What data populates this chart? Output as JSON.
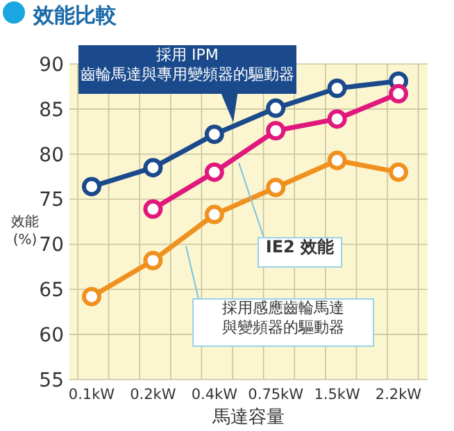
{
  "chart_data": {
    "type": "line",
    "title": "效能比較",
    "xlabel": "馬達容量",
    "ylabel": "效能\n(%)",
    "categories": [
      "0.1kW",
      "0.2kW",
      "0.4kW",
      "0.75kW",
      "1.5kW",
      "2.2kW"
    ],
    "series": [
      {
        "name": "採用 IPM齒輪馬達與專用變頻器的驅動器",
        "color": "#1a4a8c",
        "values": [
          76.4,
          78.5,
          82.2,
          85.1,
          87.3,
          88.1
        ]
      },
      {
        "name": "IE2 效能",
        "color": "#e0187e",
        "values": [
          null,
          73.9,
          78.0,
          82.6,
          83.9,
          86.7
        ]
      },
      {
        "name": "採用感應齒輪馬達與變頻器的驅動器",
        "color": "#f0901e",
        "values": [
          64.2,
          68.2,
          73.3,
          76.3,
          79.3,
          78.0
        ]
      }
    ],
    "ylim": [
      55,
      90
    ],
    "yticks": [
      55,
      60,
      65,
      70,
      75,
      80,
      85,
      90
    ],
    "grid": true,
    "marker": "circle",
    "line_style": "solid"
  }
}
